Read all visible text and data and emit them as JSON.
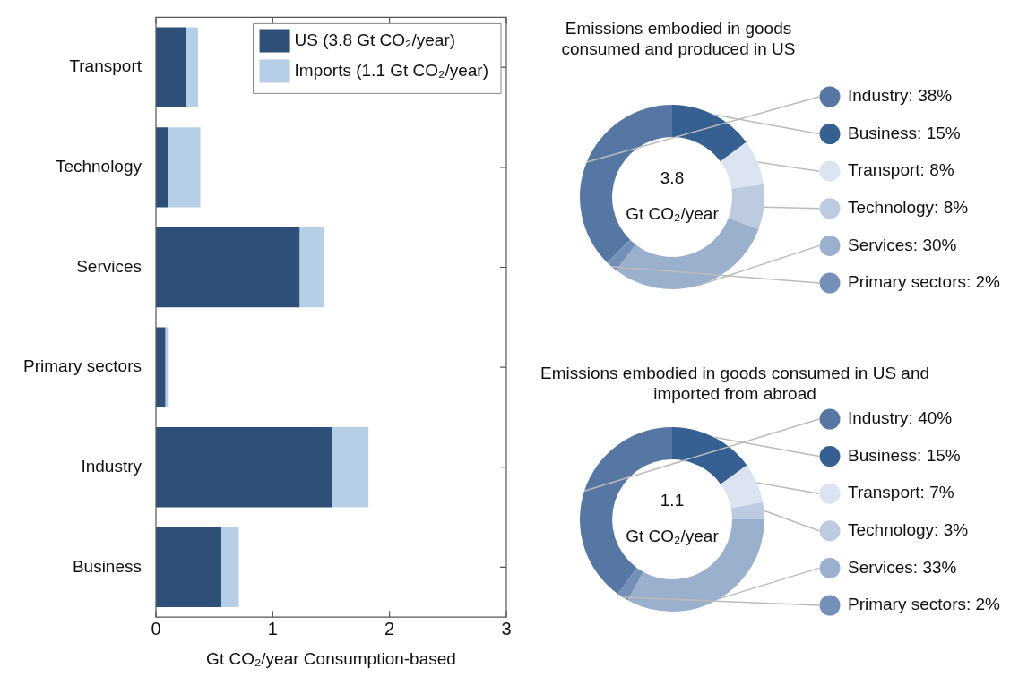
{
  "chart_data": [
    {
      "type": "bar",
      "orientation": "horizontal",
      "stacked": true,
      "categories": [
        "Transport",
        "Technology",
        "Services",
        "Primary sectors",
        "Industry",
        "Business"
      ],
      "series": [
        {
          "name": "US (3.8 Gt CO₂/year)",
          "color": "#2d4f78",
          "values": [
            0.26,
            0.1,
            1.23,
            0.08,
            1.51,
            0.56
          ]
        },
        {
          "name": "Imports (1.1 Gt CO₂/year)",
          "color": "#b6cfe6",
          "values": [
            0.1,
            0.28,
            0.21,
            0.03,
            0.31,
            0.15
          ]
        }
      ],
      "xlabel": "Gt CO₂/year Consumption-based",
      "xlim": [
        0,
        3
      ],
      "xticks": [
        0,
        1,
        2,
        3
      ],
      "grid": false,
      "legend": "top right"
    },
    {
      "type": "donut",
      "title": "Emissions embodied in goods consumed and produced in US",
      "categories": [
        "Industry",
        "Business",
        "Transport",
        "Technology",
        "Services",
        "Primary sectors"
      ],
      "values": [
        38,
        15,
        8,
        8,
        30,
        2
      ],
      "value_labels": [
        "38%",
        "15%",
        "8%",
        "8%",
        "30%",
        "2%"
      ],
      "colors": [
        "#5677a3",
        "#365f92",
        "#dbe4f0",
        "#bccbe0",
        "#9bb0cc",
        "#7590b8"
      ],
      "annotations": [
        "3.8",
        "Gt CO₂/year"
      ],
      "legend": "right"
    },
    {
      "type": "donut",
      "title": "Emissions embodied in goods consumed in US and imported from abroad",
      "categories": [
        "Industry",
        "Business",
        "Transport",
        "Technology",
        "Services",
        "Primary sectors"
      ],
      "values": [
        40,
        15,
        7,
        3,
        33,
        2
      ],
      "value_labels": [
        "40%",
        "15%",
        "7%",
        "3%",
        "33%",
        "2%"
      ],
      "colors": [
        "#5677a3",
        "#365f92",
        "#dbe4f0",
        "#bccbe0",
        "#9bb0cc",
        "#7590b8"
      ],
      "annotations": [
        "1.1",
        "Gt CO₂/year"
      ],
      "legend": "right"
    }
  ]
}
